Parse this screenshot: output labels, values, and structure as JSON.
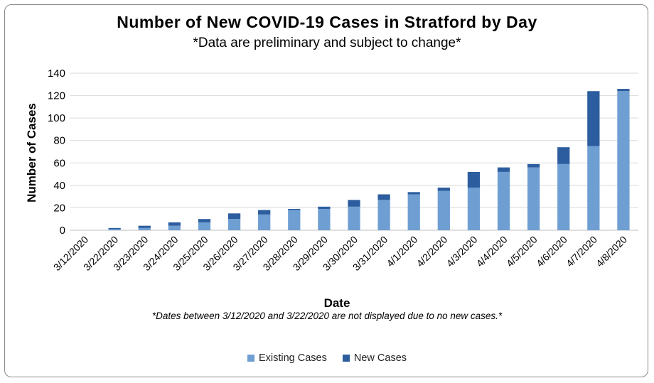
{
  "chart_data": {
    "type": "bar",
    "stacked": true,
    "title": "Number of New COVID-19 Cases in Stratford by Day",
    "subtitle": "*Data are preliminary and subject to change*",
    "xlabel": "Date",
    "ylabel": "Number of Cases",
    "footnote": "*Dates between 3/12/2020 and 3/22/2020 are not displayed due to no new cases.*",
    "ylim": [
      0,
      140
    ],
    "yticks": [
      0,
      20,
      40,
      60,
      80,
      100,
      120,
      140
    ],
    "grid": true,
    "legend_position": "bottom",
    "categories": [
      "3/12/2020",
      "3/22/2020",
      "3/23/2020",
      "3/24/2020",
      "3/25/2020",
      "3/26/2020",
      "3/27/2020",
      "3/28/2020",
      "3/29/2020",
      "3/30/2020",
      "3/31/2020",
      "4/1/2020",
      "4/2/2020",
      "4/3/2020",
      "4/4/2020",
      "4/5/2020",
      "4/6/2020",
      "4/7/2020",
      "4/8/2020"
    ],
    "series": [
      {
        "name": "Existing Cases",
        "color": "#6f9fd2",
        "values": [
          0,
          1,
          2,
          4,
          7,
          10,
          14,
          18,
          19,
          21,
          27,
          32,
          35,
          38,
          52,
          56,
          59,
          75,
          124
        ]
      },
      {
        "name": "New Cases",
        "color": "#2c5d9e",
        "values": [
          0,
          1,
          2,
          3,
          3,
          5,
          4,
          1,
          2,
          6,
          5,
          2,
          3,
          14,
          4,
          3,
          15,
          49,
          2
        ]
      }
    ]
  }
}
